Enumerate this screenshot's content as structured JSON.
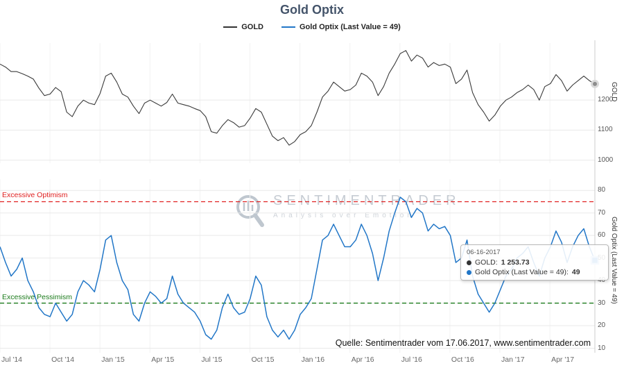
{
  "title": "Gold Optix",
  "legend": [
    {
      "label": "GOLD",
      "color": "#333333"
    },
    {
      "label": "Gold Optix (Last Value = 49)",
      "color": "#2176c7"
    }
  ],
  "watermark": {
    "line1": "SENTIMENTRADER",
    "line2": "Analysis over Emotion"
  },
  "source_note": "Quelle: Sentimentrader vom 17.06.2017, www.sentimentrader.com",
  "tooltip": {
    "date": "06-16-2017",
    "rows": [
      {
        "label": "GOLD:",
        "value": "1 253.73",
        "color": "#333333"
      },
      {
        "label": "Gold Optix (Last Value = 49):",
        "value": "49",
        "color": "#2176c7"
      }
    ]
  },
  "x_axis": {
    "labels": [
      "Jul '14",
      "Oct '14",
      "Jan '15",
      "Apr '15",
      "Jul '15",
      "Oct '15",
      "Jan '16",
      "Apr '16",
      "Jul '16",
      "Oct '16",
      "Jan '17",
      "Apr '17"
    ],
    "tick_months": [
      0,
      3,
      6,
      9,
      12,
      15,
      18,
      21,
      24,
      27,
      30,
      33
    ],
    "total_months": 35.7
  },
  "chart_data": [
    {
      "type": "line",
      "name": "GOLD",
      "ylabel": "GOLD",
      "color": "#3a3a3a",
      "ylim": [
        990,
        1390
      ],
      "yticks": [
        1000,
        1100,
        1200
      ],
      "last_value": 1253.73,
      "x_note": "3 points per month from Jul 2014 to mid Jun 2017",
      "values": [
        1320,
        1310,
        1295,
        1295,
        1288,
        1280,
        1270,
        1240,
        1215,
        1220,
        1242,
        1228,
        1160,
        1145,
        1180,
        1200,
        1190,
        1185,
        1222,
        1280,
        1290,
        1260,
        1220,
        1210,
        1180,
        1155,
        1190,
        1200,
        1190,
        1180,
        1192,
        1220,
        1190,
        1185,
        1180,
        1172,
        1165,
        1145,
        1095,
        1090,
        1115,
        1135,
        1125,
        1110,
        1115,
        1140,
        1172,
        1160,
        1120,
        1080,
        1065,
        1075,
        1050,
        1062,
        1085,
        1095,
        1115,
        1160,
        1210,
        1230,
        1260,
        1245,
        1230,
        1235,
        1250,
        1290,
        1280,
        1260,
        1215,
        1245,
        1290,
        1320,
        1355,
        1365,
        1330,
        1350,
        1340,
        1310,
        1325,
        1315,
        1320,
        1310,
        1255,
        1270,
        1300,
        1225,
        1185,
        1160,
        1130,
        1150,
        1180,
        1200,
        1210,
        1225,
        1235,
        1250,
        1235,
        1200,
        1245,
        1255,
        1285,
        1265,
        1230,
        1250,
        1265,
        1280,
        1265,
        1253.73
      ]
    },
    {
      "type": "line",
      "name": "Gold Optix",
      "ylabel": "Gold Optix (Last Value = 49)",
      "color": "#2176c7",
      "ylim": [
        8,
        85
      ],
      "yticks": [
        10,
        20,
        30,
        40,
        50,
        60,
        70,
        80
      ],
      "last_value": 49,
      "thresholds": [
        {
          "label": "Excessive Optimism",
          "value": 75,
          "color": "#e02020"
        },
        {
          "label": "Excessive Pessimism",
          "value": 30,
          "color": "#1a7a1a"
        }
      ],
      "x_note": "3 points per month from Jul 2014 to mid Jun 2017",
      "values": [
        55,
        48,
        42,
        45,
        50,
        40,
        35,
        28,
        25,
        24,
        30,
        26,
        22,
        25,
        35,
        40,
        38,
        35,
        45,
        58,
        60,
        48,
        40,
        36,
        25,
        22,
        30,
        35,
        33,
        30,
        32,
        42,
        34,
        30,
        28,
        26,
        22,
        16,
        14,
        18,
        28,
        34,
        28,
        25,
        26,
        32,
        42,
        38,
        24,
        18,
        15,
        18,
        14,
        18,
        25,
        28,
        32,
        45,
        58,
        60,
        65,
        60,
        55,
        55,
        58,
        65,
        60,
        52,
        40,
        50,
        62,
        70,
        77,
        75,
        68,
        72,
        70,
        62,
        65,
        63,
        64,
        60,
        48,
        50,
        58,
        42,
        34,
        30,
        26,
        30,
        36,
        42,
        45,
        50,
        52,
        55,
        48,
        42,
        50,
        55,
        62,
        57,
        48,
        55,
        60,
        63,
        55,
        49
      ]
    }
  ]
}
